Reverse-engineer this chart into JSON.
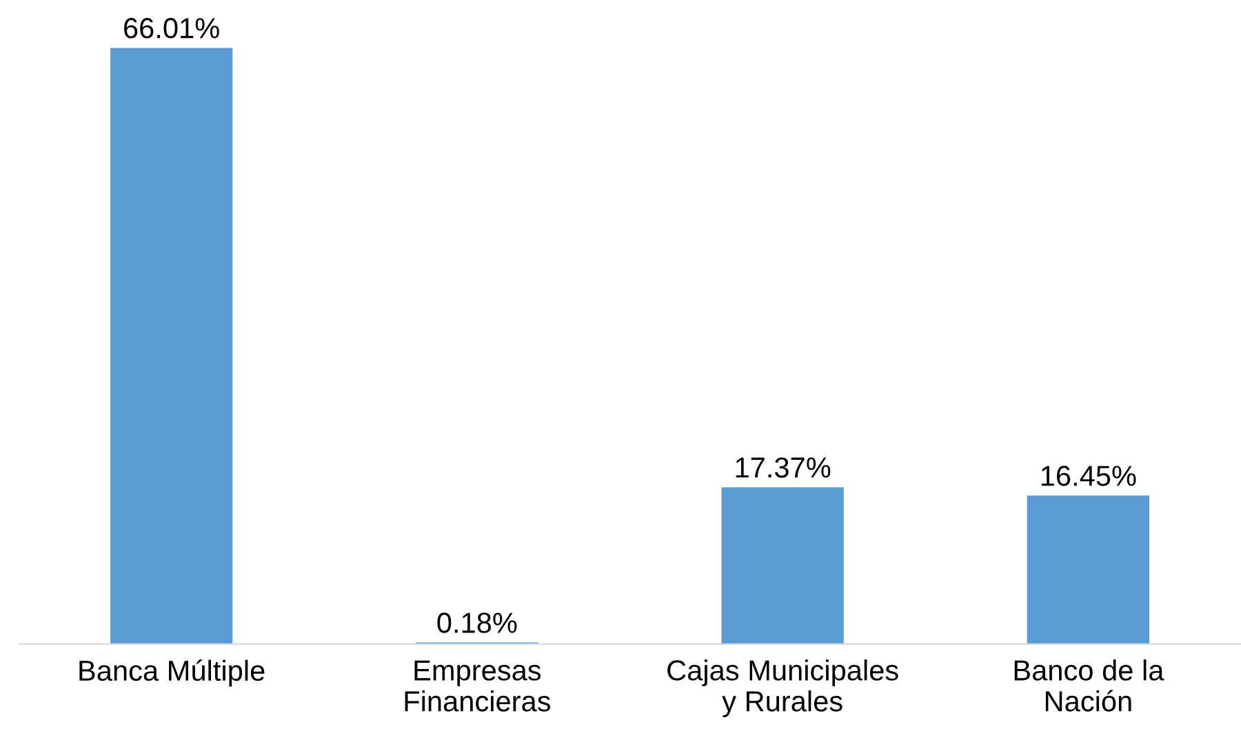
{
  "chart_data": {
    "type": "bar",
    "categories": [
      "Banca Múltiple",
      "Empresas\nFinancieras",
      "Cajas Municipales\ny Rurales",
      "Banco de la\nNación"
    ],
    "values": [
      66.01,
      0.18,
      17.37,
      16.45
    ],
    "value_labels": [
      "66.01%",
      "0.18%",
      "17.37%",
      "16.45%"
    ],
    "color": "#5b9bd5",
    "grid": false,
    "legend": false
  }
}
